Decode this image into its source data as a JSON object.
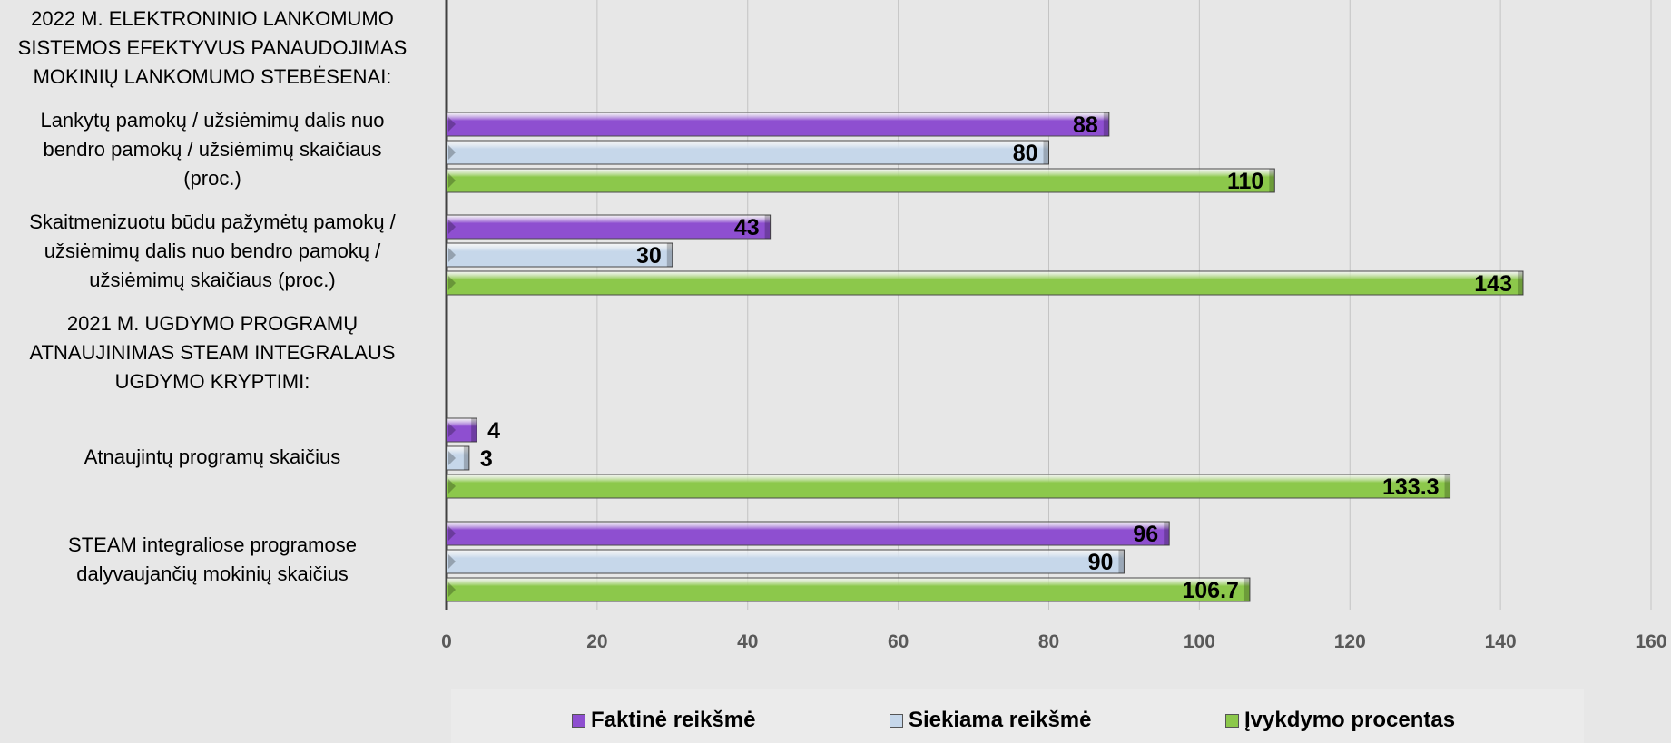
{
  "chart_data": {
    "type": "bar",
    "orientation": "horizontal",
    "xlim": [
      0,
      160
    ],
    "x_ticks": [
      "0",
      "20",
      "40",
      "60",
      "80",
      "100",
      "120",
      "140",
      "160"
    ],
    "grid": true,
    "legend_position": "bottom",
    "categories": [
      "2022 M. ELEKTRONINIO LANKOMUMO SISTEMOS EFEKTYVUS PANAUDOJIMAS MOKINIŲ LANKOMUMO STEBĖSENAI:",
      "Lankytų pamokų / užsiėmimų dalis nuo bendro pamokų / užsiėmimų skaičiaus (proc.)",
      "Skaitmenizuotu būdu pažymėtų pamokų / užsiėmimų dalis nuo bendro pamokų / užsiėmimų skaičiaus (proc.)",
      "2021 M. UGDYMO PROGRAMŲ ATNAUJINIMAS STEAM INTEGRALAUS UGDYMO KRYPTIMI:",
      "Atnaujintų programų skaičius",
      "STEAM integraliose programose dalyvaujančių mokinių skaičius"
    ],
    "category_lines": [
      [
        "2022 M. ELEKTRONINIO LANKOMUMO",
        "SISTEMOS EFEKTYVUS PANAUDOJIMAS",
        "MOKINIŲ LANKOMUMO STEBĖSENAI:"
      ],
      [
        "Lankytų pamokų / užsiėmimų dalis nuo",
        "bendro pamokų / užsiėmimų skaičiaus",
        "(proc.)"
      ],
      [
        "Skaitmenizuotu būdu pažymėtų pamokų /",
        "užsiėmimų dalis nuo bendro pamokų /",
        "užsiėmimų skaičiaus (proc.)"
      ],
      [
        "2021 M. UGDYMO PROGRAMŲ",
        "ATNAUJINIMAS STEAM INTEGRALAUS",
        "UGDYMO KRYPTIMI:"
      ],
      [
        "Atnaujintų programų skaičius"
      ],
      [
        "STEAM integraliose programose",
        "dalyvaujančių mokinių skaičius"
      ]
    ],
    "series": [
      {
        "name": "Faktinė reikšmė",
        "color": "#8e4fd0",
        "values": [
          null,
          88,
          43,
          null,
          4,
          96
        ],
        "labels": [
          "",
          "88",
          "43",
          "",
          "4",
          "96"
        ]
      },
      {
        "name": "Siekiama reikšmė",
        "color": "#c6d7ea",
        "values": [
          null,
          80,
          30,
          null,
          3,
          90
        ],
        "labels": [
          "",
          "80",
          "30",
          "",
          "3",
          "90"
        ]
      },
      {
        "name": "Įvykdymo procentas",
        "color": "#8cc84b",
        "values": [
          null,
          110,
          143,
          null,
          133.3,
          106.7
        ],
        "labels": [
          "",
          "110",
          "143",
          "",
          "133.3",
          "106.7"
        ]
      }
    ]
  }
}
